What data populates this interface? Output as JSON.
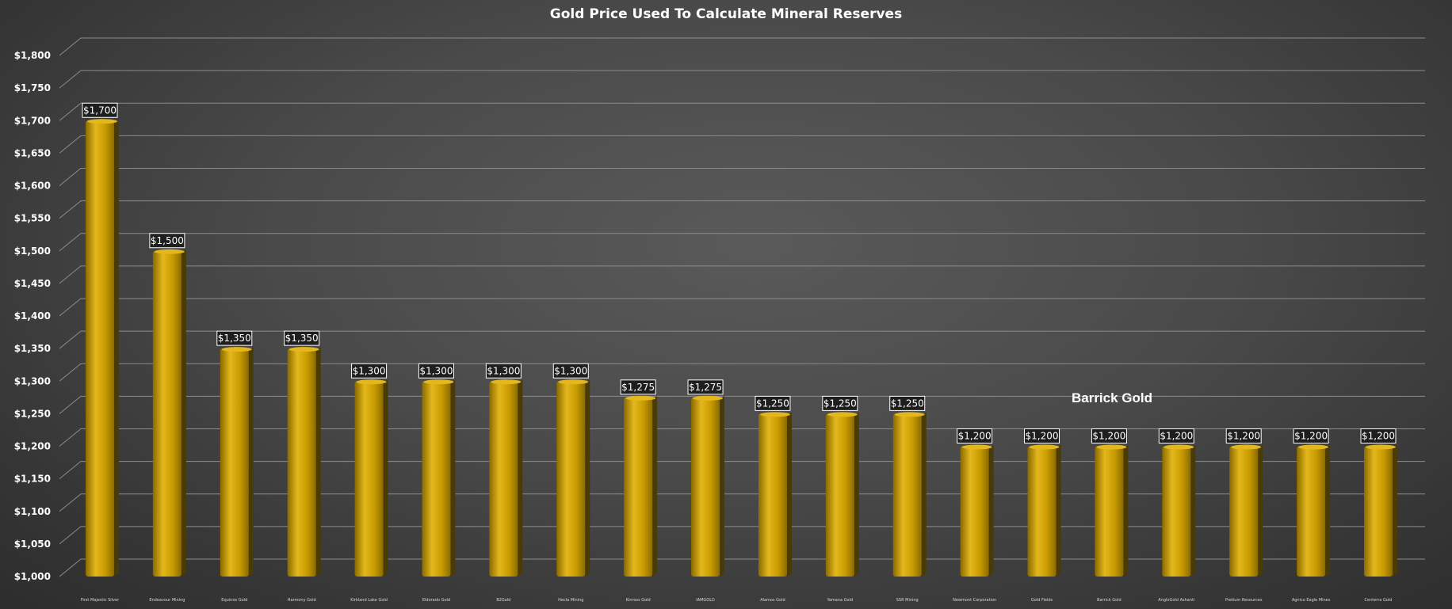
{
  "chart_data": {
    "type": "bar",
    "title": "Gold Price Used To Calculate Mineral Reserves",
    "xlabel": "",
    "ylabel": "",
    "ylim": [
      1000,
      1800
    ],
    "ytick_step": 50,
    "ytick_labels": [
      "$1,000",
      "$1,050",
      "$1,100",
      "$1,150",
      "$1,200",
      "$1,250",
      "$1,300",
      "$1,350",
      "$1,400",
      "$1,450",
      "$1,500",
      "$1,550",
      "$1,600",
      "$1,650",
      "$1,700",
      "$1,750",
      "$1,800"
    ],
    "categories": [
      "First Majestic Silver",
      "Endeavour Mining",
      "Equinox Gold",
      "Harmony Gold",
      "Kirkland Lake Gold",
      "Eldorado Gold",
      "B2Gold",
      "Hecla Mining",
      "Kinross Gold",
      "IAMGOLD",
      "Alamos Gold",
      "Yamana Gold",
      "SSR Mining",
      "Newmont Corporation",
      "Gold Fields",
      "Barrick Gold",
      "AngloGold Ashanti",
      "Pretium Resources",
      "Agnico Eagle Mines",
      "Centerra Gold"
    ],
    "values": [
      1700,
      1500,
      1350,
      1350,
      1300,
      1300,
      1300,
      1300,
      1275,
      1275,
      1250,
      1250,
      1250,
      1200,
      1200,
      1200,
      1200,
      1200,
      1200,
      1200
    ],
    "data_labels": [
      "$1,700",
      "$1,500",
      "$1,350",
      "$1,350",
      "$1,300",
      "$1,300",
      "$1,300",
      "$1,300",
      "$1,275",
      "$1,275",
      "$1,250",
      "$1,250",
      "$1,250",
      "$1,200",
      "$1,200",
      "$1,200",
      "$1,200",
      "$1,200",
      "$1,200",
      "$1,200"
    ],
    "annotation": "Barrick Gold",
    "grid": true,
    "legend": "none",
    "colors": {
      "bar": "#c79a00",
      "bar_light": "#e4b81c",
      "bar_dark": "#8a6a00",
      "bar_side": "#4a3a05",
      "grid": "#8c8c8c",
      "text": "#ffffff",
      "label_bg": "#1e1e1e"
    }
  }
}
